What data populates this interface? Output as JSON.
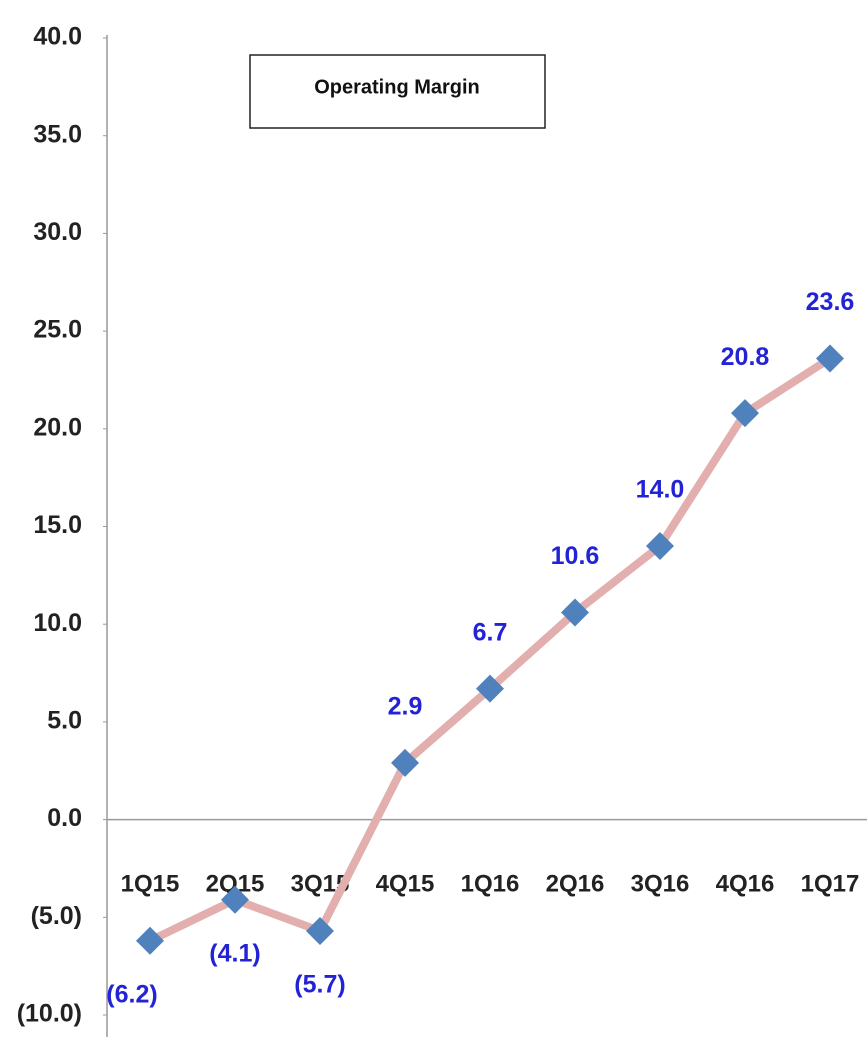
{
  "chart_data": {
    "type": "line",
    "title": "Operating Margin",
    "categories": [
      "1Q15",
      "2Q15",
      "3Q15",
      "4Q15",
      "1Q16",
      "2Q16",
      "3Q16",
      "4Q16",
      "1Q17"
    ],
    "series": [
      {
        "name": "Operating Margin",
        "color": "#e3aeae",
        "marker_color": "#4f81bd",
        "values": [
          -6.2,
          -4.1,
          -5.7,
          2.9,
          6.7,
          10.6,
          14.0,
          20.8,
          23.6
        ],
        "value_labels": [
          "(6.2)",
          "(4.1)",
          "(5.7)",
          "2.9",
          "6.7",
          "10.6",
          "14.0",
          "20.8",
          "23.6"
        ]
      }
    ],
    "label_color": "#2323d6",
    "ylim": [
      -10,
      40
    ],
    "yticks": [
      {
        "value": -10,
        "label": "(10.0)"
      },
      {
        "value": -5,
        "label": "(5.0)"
      },
      {
        "value": 0,
        "label": "0.0"
      },
      {
        "value": 5,
        "label": "5.0"
      },
      {
        "value": 10,
        "label": "10.0"
      },
      {
        "value": 15,
        "label": "15.0"
      },
      {
        "value": 20,
        "label": "20.0"
      },
      {
        "value": 25,
        "label": "25.0"
      },
      {
        "value": 30,
        "label": "30.0"
      },
      {
        "value": 35,
        "label": "35.0"
      },
      {
        "value": 40,
        "label": "40.0"
      }
    ],
    "grid": false
  }
}
